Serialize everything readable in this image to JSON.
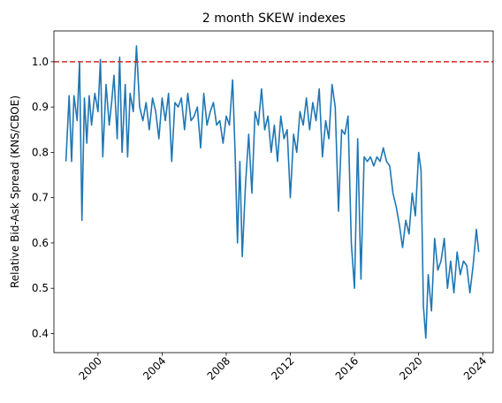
{
  "chart_data": {
    "type": "line",
    "title": "2 month SKEW indexes",
    "xlabel": "",
    "ylabel": "Relative Bid-Ask Spread (KNS/CBOE)",
    "xlim": [
      1997.25,
      2024.65
    ],
    "ylim": [
      0.358,
      1.068
    ],
    "x_ticks": [
      2000,
      2004,
      2008,
      2012,
      2016,
      2020,
      2024
    ],
    "x_tick_labels": [
      "2000",
      "2004",
      "2008",
      "2012",
      "2016",
      "2020",
      "2024"
    ],
    "y_ticks": [
      0.4,
      0.5,
      0.6,
      0.7,
      0.8,
      0.9,
      1.0
    ],
    "y_tick_labels": [
      "0.4",
      "0.5",
      "0.6",
      "0.7",
      "0.8",
      "0.9",
      "1.0"
    ],
    "grid": false,
    "reference_line": {
      "y": 1.0,
      "style": "dashed",
      "color": "#d62728"
    },
    "series": [
      {
        "color": "#1f77b4",
        "x": [
          1998.0,
          1998.2,
          1998.35,
          1998.5,
          1998.7,
          1998.85,
          1999.0,
          1999.15,
          1999.3,
          1999.45,
          1999.6,
          1999.8,
          2000.0,
          2000.15,
          2000.3,
          2000.5,
          2000.7,
          2000.85,
          2001.0,
          2001.2,
          2001.35,
          2001.5,
          2001.7,
          2001.85,
          2002.0,
          2002.2,
          2002.4,
          2002.6,
          2002.8,
          2003.0,
          2003.2,
          2003.4,
          2003.6,
          2003.8,
          2004.0,
          2004.2,
          2004.4,
          2004.6,
          2004.8,
          2005.0,
          2005.2,
          2005.4,
          2005.6,
          2005.8,
          2006.0,
          2006.2,
          2006.4,
          2006.6,
          2006.8,
          2007.0,
          2007.2,
          2007.4,
          2007.6,
          2007.8,
          2008.0,
          2008.2,
          2008.4,
          2008.55,
          2008.7,
          2008.85,
          2009.0,
          2009.2,
          2009.4,
          2009.6,
          2009.8,
          2010.0,
          2010.2,
          2010.4,
          2010.6,
          2010.8,
          2011.0,
          2011.2,
          2011.4,
          2011.6,
          2011.8,
          2012.0,
          2012.2,
          2012.4,
          2012.6,
          2012.8,
          2013.0,
          2013.2,
          2013.4,
          2013.6,
          2013.8,
          2014.0,
          2014.2,
          2014.4,
          2014.6,
          2014.8,
          2015.0,
          2015.2,
          2015.4,
          2015.6,
          2015.8,
          2016.0,
          2016.2,
          2016.4,
          2016.6,
          2016.8,
          2017.0,
          2017.2,
          2017.4,
          2017.6,
          2017.8,
          2018.0,
          2018.2,
          2018.4,
          2018.6,
          2018.8,
          2019.0,
          2019.2,
          2019.4,
          2019.6,
          2019.8,
          2020.0,
          2020.15,
          2020.3,
          2020.45,
          2020.6,
          2020.8,
          2021.0,
          2021.2,
          2021.4,
          2021.6,
          2021.8,
          2022.0,
          2022.2,
          2022.4,
          2022.6,
          2022.8,
          2023.0,
          2023.2,
          2023.4,
          2023.6,
          2023.75
        ],
        "y": [
          0.78,
          0.925,
          0.78,
          0.925,
          0.87,
          1.0,
          0.65,
          0.92,
          0.82,
          0.925,
          0.86,
          0.93,
          0.89,
          1.005,
          0.79,
          0.95,
          0.86,
          0.91,
          0.97,
          0.83,
          1.01,
          0.8,
          0.95,
          0.79,
          0.93,
          0.89,
          1.035,
          0.9,
          0.87,
          0.91,
          0.85,
          0.92,
          0.89,
          0.83,
          0.92,
          0.87,
          0.93,
          0.78,
          0.91,
          0.9,
          0.92,
          0.85,
          0.93,
          0.87,
          0.88,
          0.9,
          0.81,
          0.93,
          0.86,
          0.89,
          0.91,
          0.86,
          0.87,
          0.82,
          0.88,
          0.86,
          0.96,
          0.8,
          0.6,
          0.78,
          0.57,
          0.73,
          0.84,
          0.71,
          0.89,
          0.86,
          0.94,
          0.85,
          0.88,
          0.8,
          0.86,
          0.78,
          0.88,
          0.83,
          0.85,
          0.7,
          0.84,
          0.8,
          0.89,
          0.86,
          0.92,
          0.85,
          0.91,
          0.87,
          0.94,
          0.79,
          0.87,
          0.83,
          0.95,
          0.9,
          0.67,
          0.85,
          0.84,
          0.88,
          0.6,
          0.5,
          0.83,
          0.52,
          0.79,
          0.78,
          0.79,
          0.77,
          0.79,
          0.78,
          0.81,
          0.78,
          0.77,
          0.71,
          0.68,
          0.64,
          0.59,
          0.65,
          0.62,
          0.71,
          0.66,
          0.8,
          0.76,
          0.46,
          0.39,
          0.53,
          0.45,
          0.61,
          0.54,
          0.56,
          0.61,
          0.5,
          0.56,
          0.49,
          0.58,
          0.53,
          0.56,
          0.55,
          0.49,
          0.55,
          0.63,
          0.58
        ]
      }
    ]
  }
}
